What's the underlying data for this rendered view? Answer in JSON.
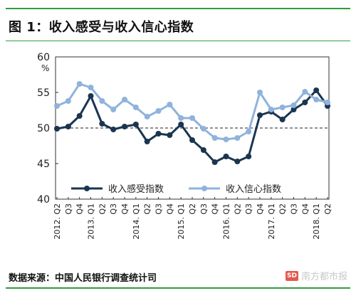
{
  "figure": {
    "title": "图 1：收入感受与收入信心指数",
    "source": "数据来源：中国人民银行调查统计司",
    "watermark": "南方都市报",
    "watermark_logo": "SD"
  },
  "colors": {
    "accent_rule": "#2e9e3e",
    "series_dark": "#1a3550",
    "series_light": "#8fb3dc"
  },
  "chart_data": {
    "type": "line",
    "unit_label": "%",
    "ylim": [
      40,
      60
    ],
    "yticks": [
      40,
      45,
      50,
      55,
      60
    ],
    "reference_line": 50,
    "grid": false,
    "legend_position": "bottom-center",
    "x_labels": [
      "2012. Q2",
      "Q3",
      "Q4",
      "2013. Q1",
      "Q2",
      "Q3",
      "Q4",
      "2014. Q1",
      "Q2",
      "Q3",
      "Q4",
      "2015. Q1",
      "Q2",
      "Q3",
      "Q4",
      "2016. Q1",
      "Q2",
      "Q3",
      "Q4",
      "2017. Q1",
      "Q2",
      "Q3",
      "Q4",
      "2018. Q1",
      "Q2"
    ],
    "series": [
      {
        "name": "收入感受指数",
        "color": "#1a3550",
        "values": [
          49.9,
          50.2,
          51.7,
          54.5,
          50.6,
          49.8,
          50.2,
          50.5,
          48.1,
          49.2,
          49.0,
          50.5,
          48.3,
          46.9,
          45.2,
          46.0,
          45.3,
          46.0,
          51.8,
          52.3,
          51.2,
          52.6,
          53.6,
          55.3,
          53.1
        ]
      },
      {
        "name": "收入信心指数",
        "color": "#8fb3dc",
        "values": [
          53.1,
          53.8,
          56.2,
          55.7,
          53.8,
          52.6,
          54.0,
          52.9,
          51.6,
          52.4,
          53.3,
          51.4,
          51.4,
          49.9,
          48.6,
          48.4,
          48.6,
          49.5,
          55.0,
          52.6,
          52.9,
          53.2,
          55.1,
          54.0,
          53.6
        ]
      }
    ]
  }
}
